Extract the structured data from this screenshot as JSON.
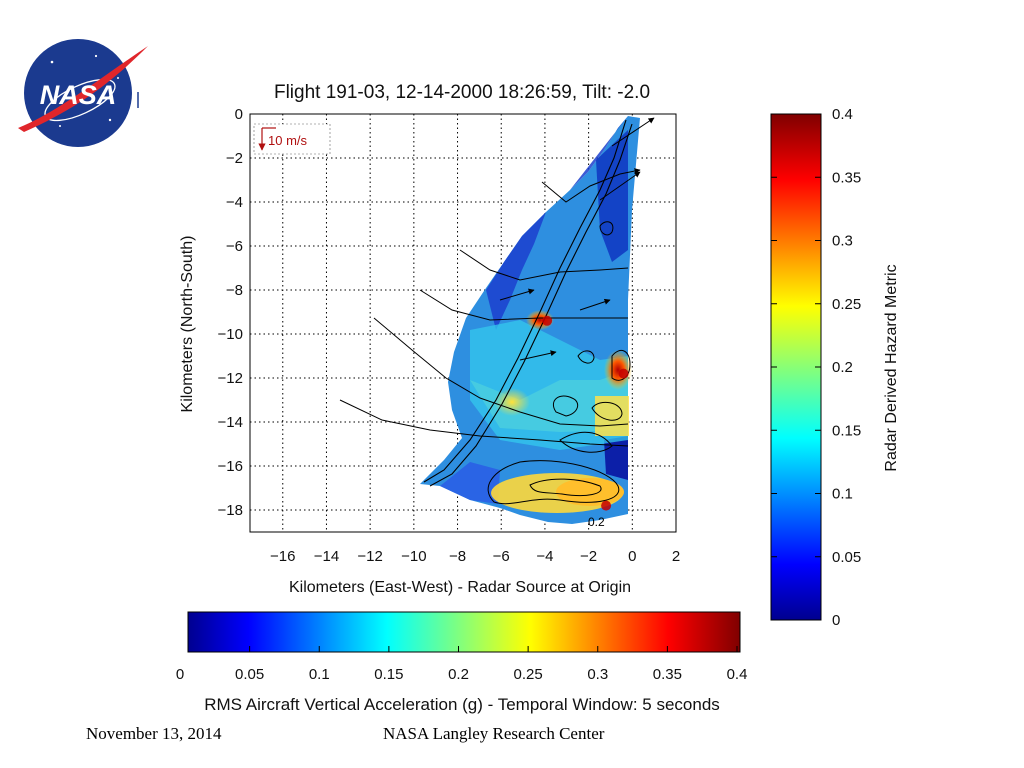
{
  "logo": {
    "text": "NASA",
    "colors": {
      "disc": "#1b3a8f",
      "swoosh": "#e0262b",
      "text": "#ffffff"
    }
  },
  "chart_data": [
    {
      "type": "heatmap",
      "title": "Flight 191-03, 12-14-2000 18:26:59, Tilt: -2.0",
      "xlabel": "Kilometers (East-West) - Radar Source at Origin",
      "ylabel": "Kilometers (North-South)",
      "xlim": [
        -17.5,
        2
      ],
      "ylim": [
        -19,
        0
      ],
      "xticks": [
        -16,
        -14,
        -12,
        -10,
        -8,
        -6,
        -4,
        -2,
        0,
        2
      ],
      "yticks": [
        0,
        -2,
        -4,
        -6,
        -8,
        -10,
        -12,
        -14,
        -16,
        -18
      ],
      "xtick_labels": [
        "−16",
        "−14",
        "−12",
        "−10",
        "−8",
        "−6",
        "−4",
        "−2",
        "0",
        "2"
      ],
      "ytick_labels": [
        "0",
        "−2",
        "−4",
        "−6",
        "−8",
        "−10",
        "−12",
        "−14",
        "−16",
        "−18"
      ],
      "grid": true,
      "wind_vector_label": "10 m/s",
      "contour_label": "0.2",
      "hotspots": [
        {
          "x": -3.9,
          "y": -9.4,
          "value": 0.34
        },
        {
          "x": -0.4,
          "y": -11.8,
          "value": 0.38
        },
        {
          "x": -1.2,
          "y": -17.8,
          "value": 0.26
        }
      ]
    },
    {
      "type": "colorbar",
      "orientation": "vertical",
      "label": "Radar Derived Hazard Metric",
      "range": [
        0,
        0.4
      ],
      "ticks": [
        "0.4",
        "0.35",
        "0.3",
        "0.25",
        "0.2",
        "0.15",
        "0.1",
        "0.05",
        "0"
      ]
    },
    {
      "type": "colorbar",
      "orientation": "horizontal",
      "label": "RMS Aircraft Vertical Acceleration (g) - Temporal Window: 5 seconds",
      "range": [
        0,
        0.4
      ],
      "ticks": [
        "0",
        "0.05",
        "0.1",
        "0.15",
        "0.2",
        "0.25",
        "0.3",
        "0.35",
        "0.4"
      ]
    }
  ],
  "footer": {
    "date": "November 13, 2014",
    "center": "NASA Langley Research Center"
  }
}
